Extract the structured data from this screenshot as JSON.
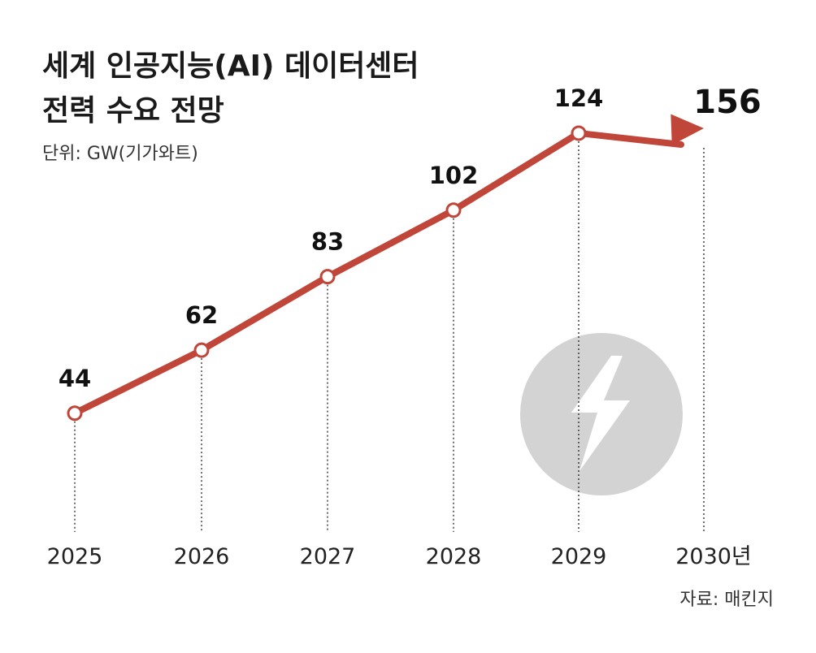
{
  "title_line1": "세계 인공지능(AI) 데이터센터",
  "title_line2": "전력 수요 전망",
  "unit_label": "단위: GW(기가와트)",
  "source": "자료: 매킨지",
  "icon": "lightning-bolt-icon",
  "colors": {
    "line": "#c0463a",
    "icon_circle": "#d3d3d3",
    "text": "#1a1a1a"
  },
  "chart_data": {
    "type": "line",
    "title": "세계 인공지능(AI) 데이터센터 전력 수요 전망",
    "unit": "GW(기가와트)",
    "x": [
      "2025",
      "2026",
      "2027",
      "2028",
      "2029",
      "2030년"
    ],
    "values": [
      44,
      62,
      83,
      102,
      124,
      156
    ],
    "value_labels": [
      "44",
      "62",
      "83",
      "102",
      "124",
      "156"
    ],
    "series": [
      {
        "values": [
          44,
          62,
          83,
          102,
          124,
          156
        ]
      }
    ],
    "last_point_style": "arrow",
    "grid": false
  }
}
